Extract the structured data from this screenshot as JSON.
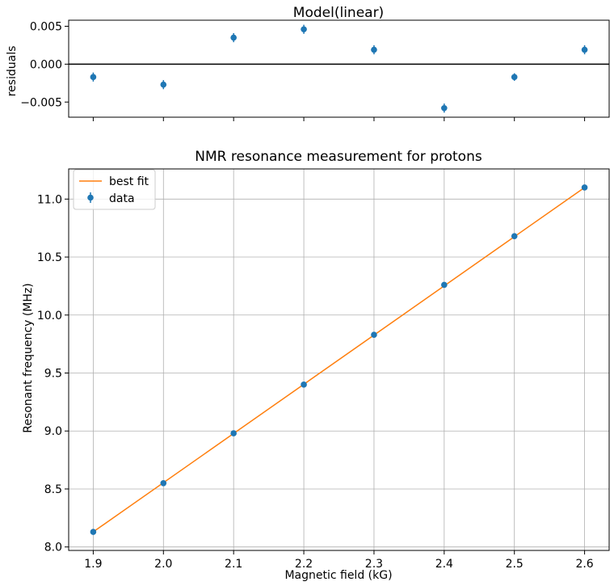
{
  "colors": {
    "data": "#1f77b4",
    "fit": "#ff7f0e",
    "grid": "#b0b0b0",
    "zero_line": "#000000",
    "axes": "#000000"
  },
  "chart_data": [
    {
      "type": "scatter",
      "title": "Model(linear)",
      "xlabel": "",
      "ylabel": "residuals",
      "xlim": [
        1.865,
        2.635
      ],
      "ylim": [
        -0.007,
        0.0058
      ],
      "yticks": [
        -0.005,
        0.0,
        0.005
      ],
      "ytick_labels": [
        "−0.005",
        "0.000",
        "0.005"
      ],
      "xticks": [
        1.9,
        2.0,
        2.1,
        2.2,
        2.3,
        2.4,
        2.5,
        2.6
      ],
      "grid": false,
      "zero_line": true,
      "series": [
        {
          "x": [
            1.9,
            2.0,
            2.1,
            2.2,
            2.3,
            2.4,
            2.5,
            2.6
          ],
          "y": [
            -0.0017,
            -0.0027,
            0.0035,
            0.0046,
            0.0019,
            -0.0058,
            -0.0017,
            0.0019
          ],
          "yerr": [
            0.0006,
            0.0006,
            0.0006,
            0.0006,
            0.0006,
            0.0006,
            0.0005,
            0.0006
          ]
        }
      ]
    },
    {
      "type": "line",
      "title": "NMR resonance measurement for protons",
      "xlabel": "Magnetic field (kG)",
      "ylabel": "Resonant frequency (MHz)",
      "xlim": [
        1.865,
        2.635
      ],
      "ylim": [
        7.97,
        11.26
      ],
      "xticks": [
        1.9,
        2.0,
        2.1,
        2.2,
        2.3,
        2.4,
        2.5,
        2.6
      ],
      "xtick_labels": [
        "1.9",
        "2.0",
        "2.1",
        "2.2",
        "2.3",
        "2.4",
        "2.5",
        "2.6"
      ],
      "yticks": [
        8.0,
        8.5,
        9.0,
        9.5,
        10.0,
        10.5,
        11.0
      ],
      "ytick_labels": [
        "8.0",
        "8.5",
        "9.0",
        "9.5",
        "10.0",
        "10.5",
        "11.0"
      ],
      "grid": true,
      "legend_position": "top-left",
      "series": [
        {
          "name": "best fit",
          "kind": "line",
          "x": [
            1.9,
            2.6
          ],
          "y": [
            8.13,
            11.1
          ]
        },
        {
          "name": "data",
          "kind": "errorbar",
          "x": [
            1.9,
            2.0,
            2.1,
            2.2,
            2.3,
            2.4,
            2.5,
            2.6
          ],
          "y": [
            8.13,
            8.55,
            8.98,
            9.4,
            9.83,
            10.26,
            10.68,
            11.1
          ]
        }
      ]
    }
  ]
}
